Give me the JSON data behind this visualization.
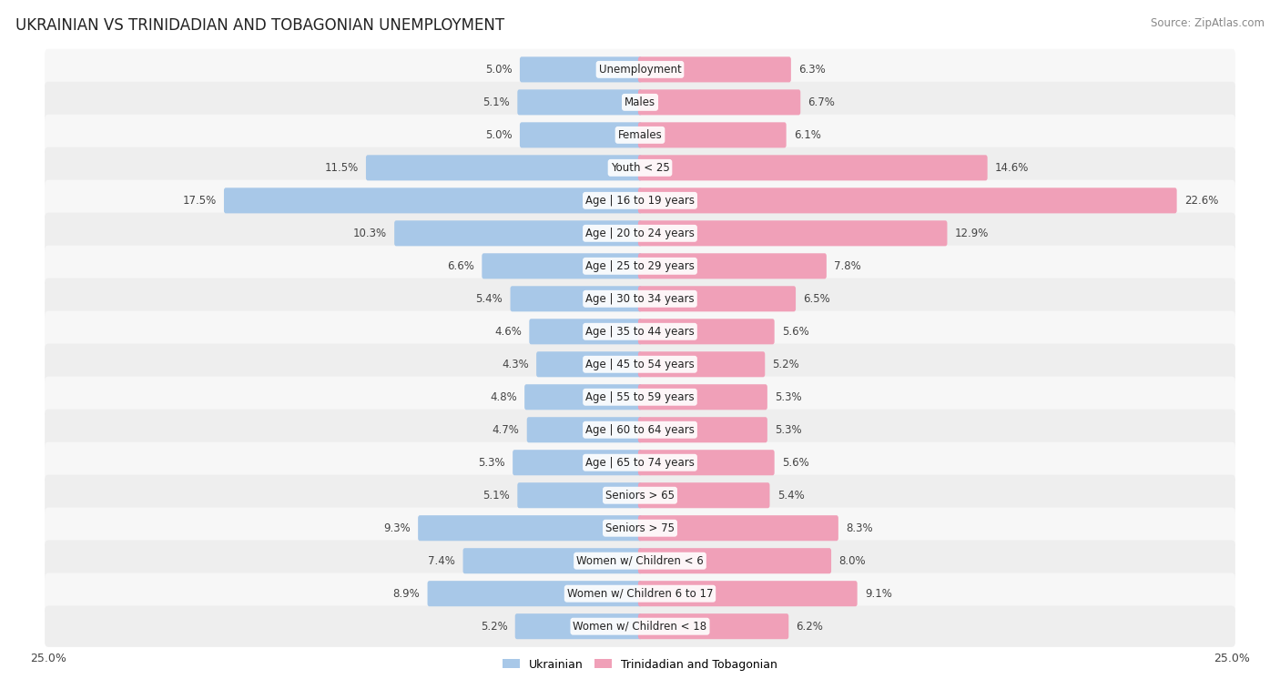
{
  "title": "UKRAINIAN VS TRINIDADIAN AND TOBAGONIAN UNEMPLOYMENT",
  "source": "Source: ZipAtlas.com",
  "categories": [
    "Unemployment",
    "Males",
    "Females",
    "Youth < 25",
    "Age | 16 to 19 years",
    "Age | 20 to 24 years",
    "Age | 25 to 29 years",
    "Age | 30 to 34 years",
    "Age | 35 to 44 years",
    "Age | 45 to 54 years",
    "Age | 55 to 59 years",
    "Age | 60 to 64 years",
    "Age | 65 to 74 years",
    "Seniors > 65",
    "Seniors > 75",
    "Women w/ Children < 6",
    "Women w/ Children 6 to 17",
    "Women w/ Children < 18"
  ],
  "ukrainian": [
    5.0,
    5.1,
    5.0,
    11.5,
    17.5,
    10.3,
    6.6,
    5.4,
    4.6,
    4.3,
    4.8,
    4.7,
    5.3,
    5.1,
    9.3,
    7.4,
    8.9,
    5.2
  ],
  "trinidadian": [
    6.3,
    6.7,
    6.1,
    14.6,
    22.6,
    12.9,
    7.8,
    6.5,
    5.6,
    5.2,
    5.3,
    5.3,
    5.6,
    5.4,
    8.3,
    8.0,
    9.1,
    6.2
  ],
  "ukrainian_color": "#a8c8e8",
  "trinidadian_color": "#f0a0b8",
  "row_bg_light": "#f7f7f7",
  "row_bg_dark": "#eeeeee",
  "label_color": "#555555",
  "value_color": "#444444",
  "max_val": 25.0,
  "legend_ukrainian": "Ukrainian",
  "legend_trinidadian": "Trinidadian and Tobagonian",
  "title_fontsize": 12,
  "source_fontsize": 8.5,
  "label_fontsize": 8.5,
  "value_fontsize": 8.5
}
